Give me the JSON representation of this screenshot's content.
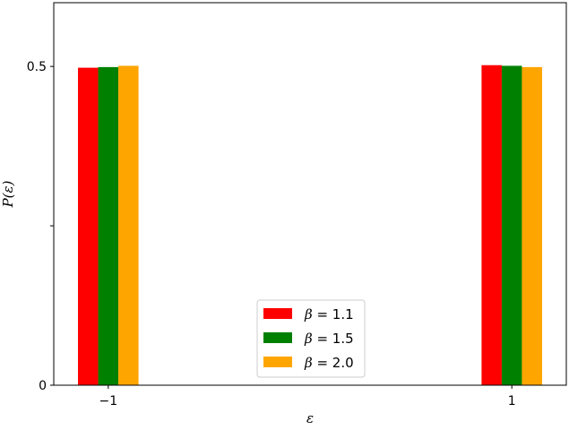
{
  "chart_data": {
    "type": "bar",
    "xlabel": "ε",
    "ylabel": "P(ε)",
    "categories": [
      "−1",
      "1"
    ],
    "x": [
      -1,
      1
    ],
    "ylim": [
      0,
      0.6
    ],
    "xlim": [
      -1.27,
      1.27
    ],
    "yticks": [
      {
        "value": 0,
        "label": "0"
      },
      {
        "value": 0.25,
        "label": ""
      },
      {
        "value": 0.5,
        "label": "0.5"
      }
    ],
    "xticks": [
      {
        "value": -1,
        "label": "−1"
      },
      {
        "value": 1,
        "label": "1"
      }
    ],
    "bar_width": 0.1,
    "series": [
      {
        "name": "β = 1.1",
        "values": [
          0.498,
          0.502
        ],
        "color": "#ff0000"
      },
      {
        "name": "β = 1.5",
        "values": [
          0.499,
          0.501
        ],
        "color": "#008000"
      },
      {
        "name": "β = 2.0",
        "values": [
          0.501,
          0.499
        ],
        "color": "#ffa500"
      }
    ],
    "legend": {
      "placement": "lower-center",
      "entries": [
        {
          "symbol": "β",
          "eq": " = 1.1"
        },
        {
          "symbol": "β",
          "eq": " = 1.5"
        },
        {
          "symbol": "β",
          "eq": " = 2.0"
        }
      ]
    },
    "grid": false
  }
}
